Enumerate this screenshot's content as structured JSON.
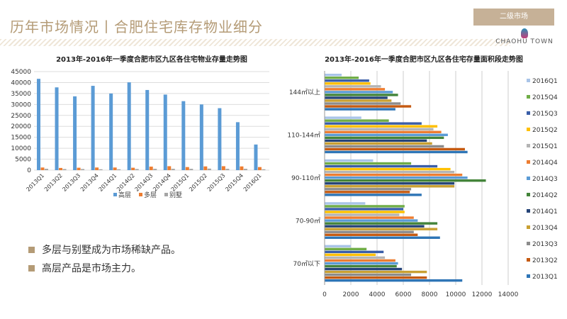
{
  "header": {
    "title": "历年市场情况丨合肥住宅库存物业细分",
    "badge": "二级市场",
    "logo": "CHAOHU TOWN"
  },
  "bullets": [
    "多层与别墅成为市场稀缺产品。",
    "高层产品是市场主力。"
  ],
  "chart_data": [
    {
      "type": "bar",
      "title": "2013年-2016年一季度合肥市区九区各住宅物业存量走势图",
      "xlabel": "",
      "ylabel": "",
      "ylim": [
        0,
        45000
      ],
      "yticks": [
        0,
        5000,
        10000,
        15000,
        20000,
        25000,
        30000,
        35000,
        40000,
        45000
      ],
      "grid": true,
      "legend": "bottom",
      "categories": [
        "2013Q1",
        "2013Q2",
        "2013Q3",
        "2013Q4",
        "2014Q1",
        "2014Q2",
        "2014Q3",
        "2014Q4",
        "2015Q1",
        "2015Q2",
        "2015Q3",
        "2015Q4",
        "2016Q1"
      ],
      "series": [
        {
          "name": "高层",
          "color": "#5b9bd5",
          "values": [
            41700,
            37800,
            33700,
            38500,
            35000,
            40100,
            36600,
            34500,
            31500,
            30000,
            28300,
            21900,
            11700
          ]
        },
        {
          "name": "多层",
          "color": "#ed7d31",
          "values": [
            1200,
            1000,
            1100,
            1200,
            1200,
            1100,
            1600,
            1800,
            1400,
            1700,
            1800,
            1700,
            1400
          ]
        },
        {
          "name": "别墅",
          "color": "#a5a5a5",
          "values": [
            600,
            500,
            500,
            400,
            400,
            500,
            600,
            600,
            600,
            700,
            600,
            600,
            400
          ]
        }
      ]
    },
    {
      "type": "bar",
      "orientation": "horizontal",
      "title": "2013年-2016年一季度合肥市区九区各住宅存量面积段走势图",
      "xlim": [
        0,
        14000
      ],
      "xticks": [
        0,
        2000,
        4000,
        6000,
        8000,
        10000,
        12000,
        14000
      ],
      "grid": true,
      "legend": "right",
      "categories": [
        "144㎡以上",
        "110-144㎡",
        "90-110㎡",
        "70-90㎡",
        "70㎡以下"
      ],
      "series": [
        {
          "name": "2016Q1",
          "color": "#a9c4e8",
          "values": [
            1300,
            2800,
            3700,
            3100,
            2000
          ]
        },
        {
          "name": "2015Q4",
          "color": "#70ad47",
          "values": [
            2600,
            4900,
            6600,
            6100,
            3200
          ]
        },
        {
          "name": "2015Q3",
          "color": "#3a5ea8",
          "values": [
            3400,
            7400,
            8600,
            6000,
            4500
          ]
        },
        {
          "name": "2015Q2",
          "color": "#ffc000",
          "values": [
            3500,
            8600,
            9600,
            6100,
            3900
          ]
        },
        {
          "name": "2015Q1",
          "color": "#b4b4b4",
          "values": [
            4300,
            8300,
            9900,
            5700,
            4600
          ]
        },
        {
          "name": "2014Q4",
          "color": "#ed7d31",
          "values": [
            4600,
            8900,
            10500,
            6800,
            5400
          ]
        },
        {
          "name": "2014Q3",
          "color": "#5b9bd5",
          "values": [
            5200,
            9400,
            10900,
            7100,
            5600
          ]
        },
        {
          "name": "2014Q2",
          "color": "#43843a",
          "values": [
            5600,
            9100,
            12300,
            8600,
            5500
          ]
        },
        {
          "name": "2014Q1",
          "color": "#264478",
          "values": [
            4800,
            7800,
            9900,
            7600,
            5900
          ]
        },
        {
          "name": "2013Q4",
          "color": "#c9a032",
          "values": [
            5100,
            8200,
            9900,
            8600,
            7800
          ]
        },
        {
          "name": "2013Q3",
          "color": "#8c8c8c",
          "values": [
            5800,
            9100,
            6600,
            6800,
            6600
          ]
        },
        {
          "name": "2013Q2",
          "color": "#c55a11",
          "values": [
            6600,
            10700,
            6500,
            7100,
            7800
          ]
        },
        {
          "name": "2013Q1",
          "color": "#2e75b6",
          "values": [
            5400,
            10900,
            7400,
            8800,
            10500
          ]
        }
      ]
    }
  ]
}
